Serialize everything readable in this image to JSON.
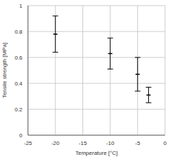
{
  "chart_data": {
    "type": "scatter",
    "x_label": "Temperature [°C]",
    "y_label": "Tensile strength [MPa]",
    "x": [
      -20,
      -10,
      -5,
      -3
    ],
    "values": [
      0.78,
      0.63,
      0.47,
      0.31
    ],
    "errors": [
      0.14,
      0.12,
      0.13,
      0.06
    ],
    "xlim": [
      -25,
      0
    ],
    "xticks": [
      -25,
      -20,
      -15,
      -10,
      -5,
      0
    ],
    "ylim": [
      0,
      1
    ],
    "yticks": [
      0,
      0.2,
      0.4,
      0.6,
      0.8,
      1
    ],
    "grid": true,
    "color": "#000000",
    "marker": "dash"
  }
}
